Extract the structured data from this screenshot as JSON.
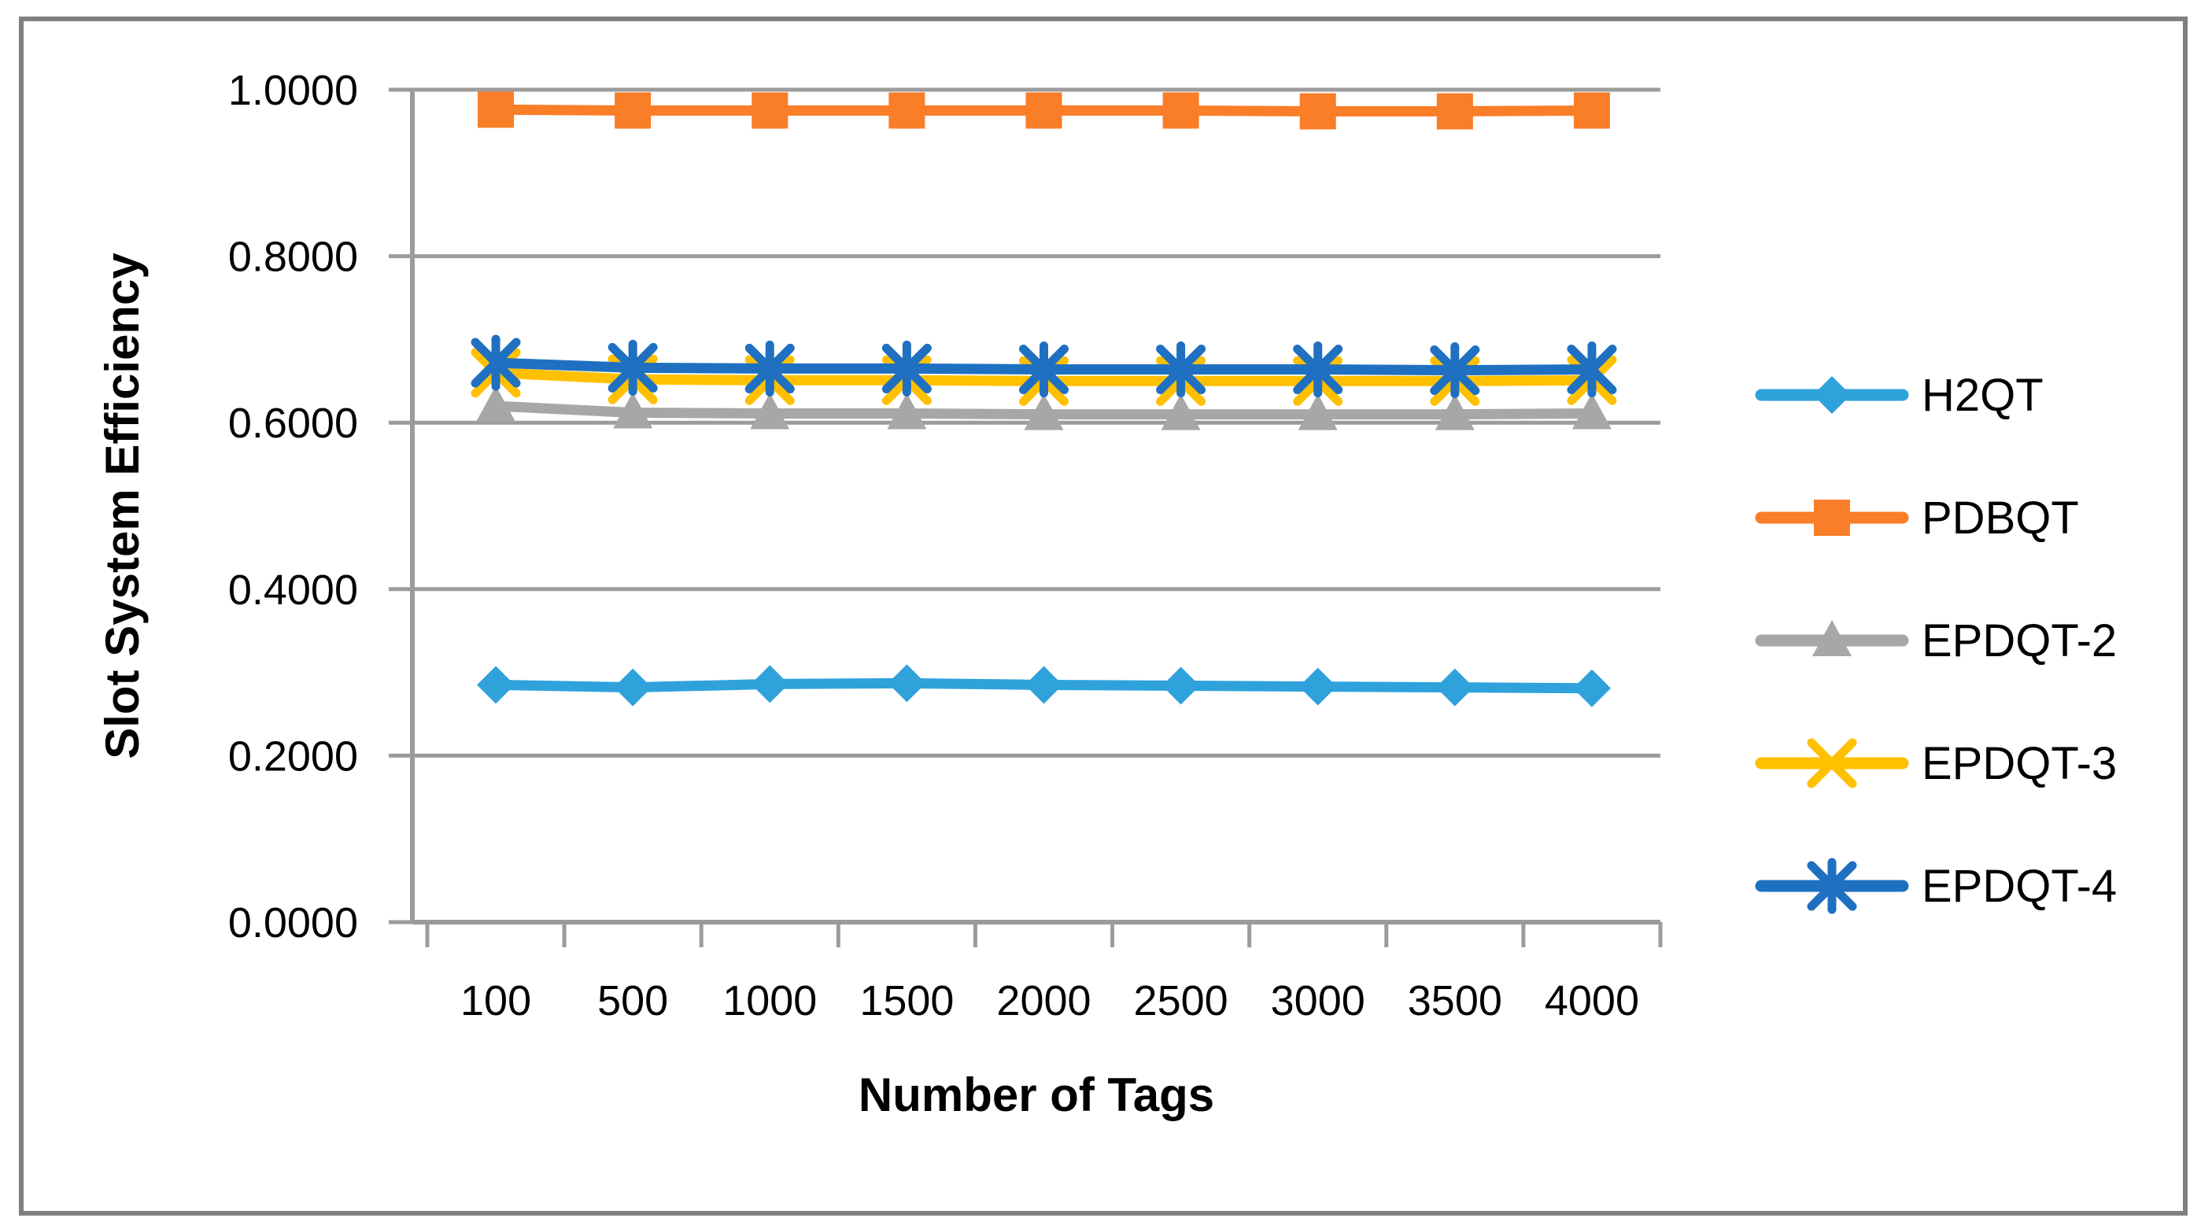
{
  "figure": {
    "background": "#FFFFFF",
    "border_color": "#808080",
    "axis_color": "#9B9B9B",
    "gridline_color": "#9B9B9B"
  },
  "chart_data": {
    "type": "line",
    "title": "",
    "xlabel": "Number of Tags",
    "ylabel": "Slot System Efficiency",
    "categories": [
      "100",
      "500",
      "1000",
      "1500",
      "2000",
      "2500",
      "3000",
      "3500",
      "4000"
    ],
    "x_values": [
      100,
      500,
      1000,
      1500,
      2000,
      2500,
      3000,
      3500,
      4000
    ],
    "ylim": [
      0.0,
      1.0
    ],
    "ytick_labels": [
      "0.0000",
      "0.2000",
      "0.4000",
      "0.6000",
      "0.8000",
      "1.0000"
    ],
    "ytick_values": [
      0.0,
      0.2,
      0.4,
      0.6,
      0.8,
      1.0
    ],
    "grid": "horizontal",
    "legend_position": "right",
    "series": [
      {
        "name": "H2QT",
        "color": "#2FA2DC",
        "marker": "diamond",
        "values": [
          0.285,
          0.282,
          0.286,
          0.287,
          0.285,
          0.284,
          0.283,
          0.282,
          0.281
        ]
      },
      {
        "name": "PDBQT",
        "color": "#FA7D28",
        "marker": "square",
        "values": [
          0.976,
          0.975,
          0.975,
          0.975,
          0.975,
          0.975,
          0.974,
          0.974,
          0.975
        ]
      },
      {
        "name": "EPDQT-2",
        "color": "#A7A7A7",
        "marker": "triangle",
        "values": [
          0.62,
          0.612,
          0.611,
          0.611,
          0.61,
          0.61,
          0.61,
          0.61,
          0.611
        ]
      },
      {
        "name": "EPDQT-3",
        "color": "#FFC000",
        "marker": "x",
        "values": [
          0.66,
          0.652,
          0.651,
          0.651,
          0.65,
          0.65,
          0.65,
          0.65,
          0.651
        ]
      },
      {
        "name": "EPDQT-4",
        "color": "#1F70C1",
        "marker": "asterisk",
        "values": [
          0.672,
          0.666,
          0.665,
          0.665,
          0.664,
          0.664,
          0.664,
          0.663,
          0.664
        ]
      }
    ]
  }
}
